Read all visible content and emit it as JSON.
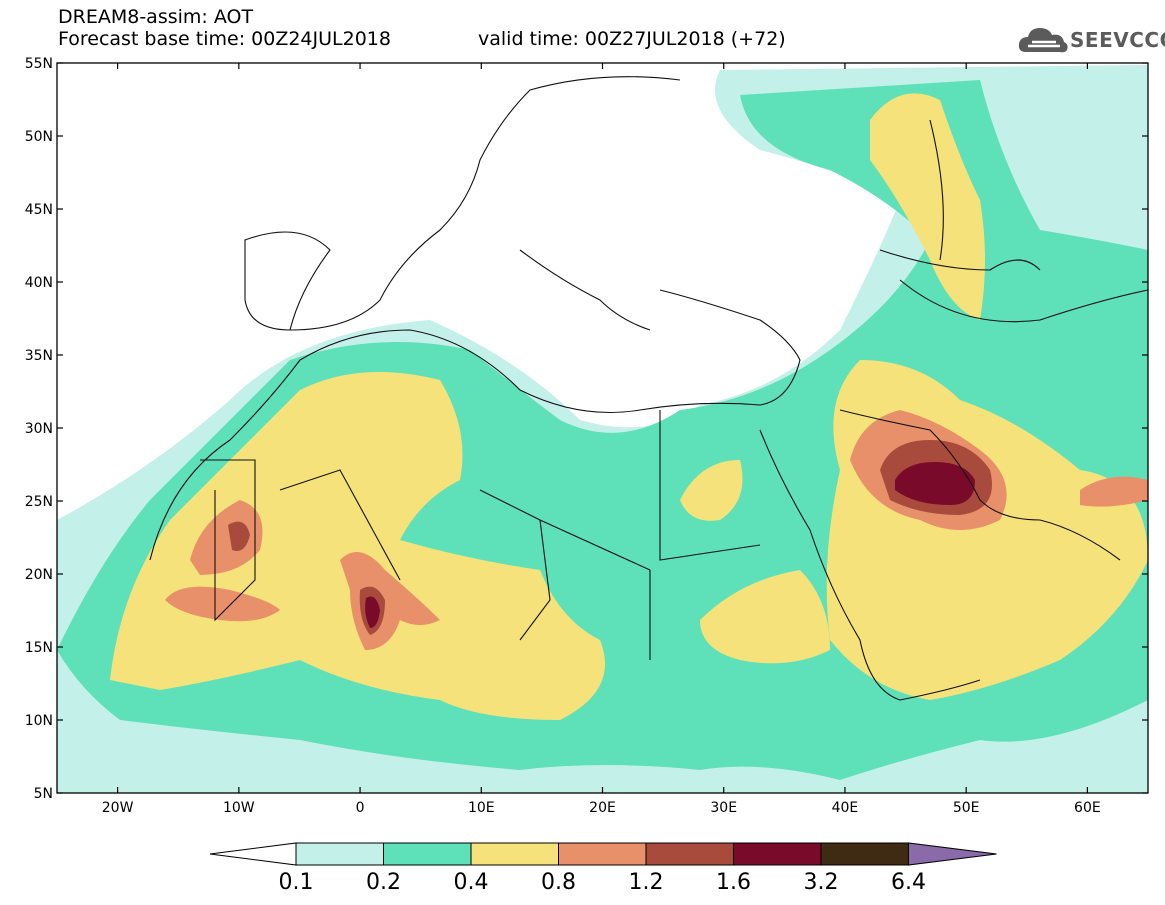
{
  "header": {
    "title": "DREAM8-assim: AOT",
    "base_time": "Forecast base time: 00Z24JUL2018",
    "valid_time": "valid time: 00Z27JUL2018 (+72)"
  },
  "logo": {
    "text": "SEEVCCC",
    "icon": "cloud-icon"
  },
  "axes": {
    "lat_labels": [
      "55N",
      "50N",
      "45N",
      "40N",
      "35N",
      "30N",
      "25N",
      "20N",
      "15N",
      "10N",
      "5N"
    ],
    "lon_labels": [
      "20W",
      "10W",
      "0",
      "10E",
      "20E",
      "30E",
      "40E",
      "50E",
      "60E"
    ]
  },
  "colorbar": {
    "labels": [
      "0.1",
      "0.2",
      "0.4",
      "0.8",
      "1.2",
      "1.6",
      "3.2",
      "6.4"
    ],
    "colors": [
      "#ffffff",
      "#c4f0ea",
      "#5ee0b8",
      "#f6e27a",
      "#e8906a",
      "#a84a3c",
      "#7a0a2a",
      "#3f2a14",
      "#8a6aa8"
    ]
  }
}
